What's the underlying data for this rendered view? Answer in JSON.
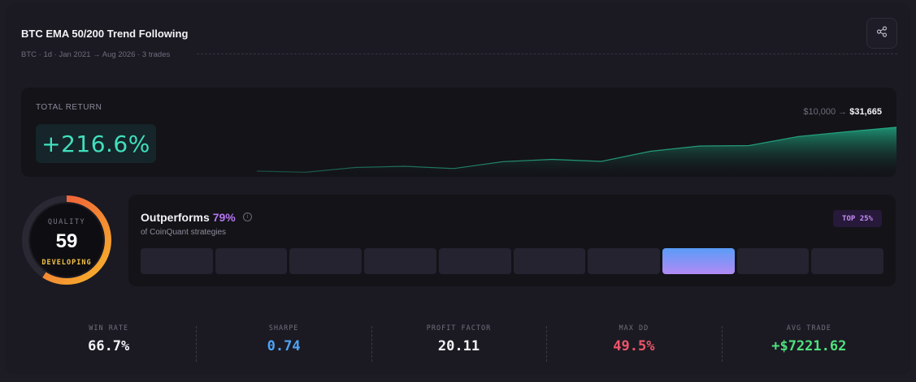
{
  "strategy": {
    "title": "BTC EMA 50/200 Trend Following",
    "subtitle": "BTC · 1d · Jan 2021 → Aug 2026 · 3 trades"
  },
  "total_return": {
    "label": "TOTAL RETURN",
    "value": "+216.6%",
    "start_equity": "$10,000",
    "arrow": "→",
    "end_equity": "$31,665",
    "equity_curve": [
      10000,
      9500,
      11800,
      12400,
      11300,
      14700,
      15800,
      14800,
      19800,
      22400,
      22600,
      27100,
      29500,
      31665
    ]
  },
  "quality": {
    "label": "QUALITY",
    "score": "59",
    "score_fraction": 0.59,
    "status": "DEVELOPING"
  },
  "ranking": {
    "title_prefix": "Outperforms",
    "percent": "79%",
    "info_icon": "i",
    "subtitle": "of CoinQuant strategies",
    "badge": "TOP 25%",
    "bucket_count": 10,
    "active_bucket": 7
  },
  "metrics": [
    {
      "label": "WIN RATE",
      "value": "66.7%",
      "color": "#f2f2f6"
    },
    {
      "label": "SHARPE",
      "value": "0.74",
      "color": "#4fa3f7"
    },
    {
      "label": "PROFIT FACTOR",
      "value": "20.11",
      "color": "#f2f2f6"
    },
    {
      "label": "MAX DD",
      "value": "49.5%",
      "color": "#f0556a"
    },
    {
      "label": "AVG TRADE",
      "value": "+$7221.62",
      "color": "#4ee07d"
    }
  ],
  "colors": {
    "accent_green": "#41e0bd",
    "accent_purple": "#b576f2",
    "gauge_orange": "#f7a52b",
    "gauge_red": "#ee4b3d"
  },
  "icons": {
    "share": "share-icon"
  }
}
